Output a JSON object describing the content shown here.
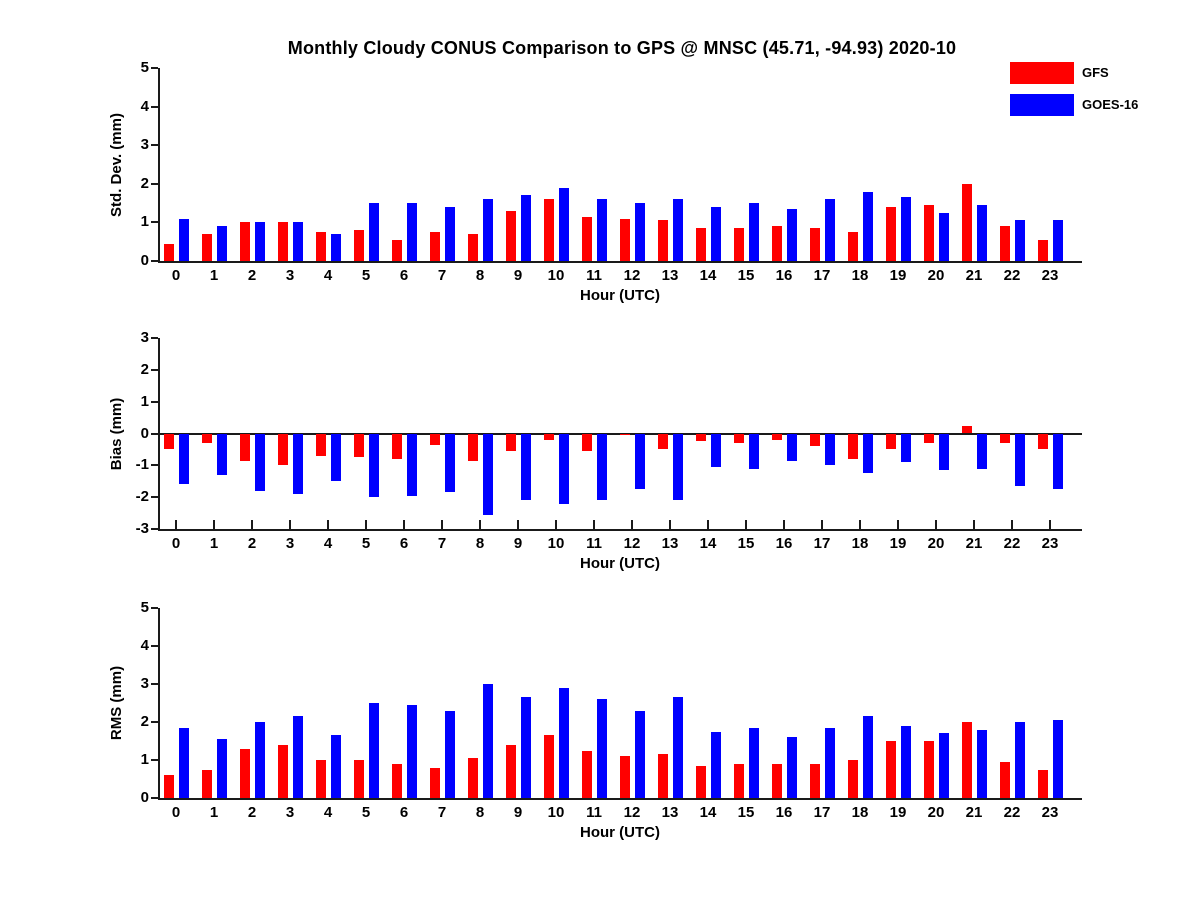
{
  "title": "Monthly Cloudy CONUS Comparison to GPS @ MNSC (45.71, -94.93) 2020-10",
  "legend": [
    {
      "label": "GFS",
      "color": "#ff0000"
    },
    {
      "label": "GOES-16",
      "color": "#0000ff"
    }
  ],
  "colors": {
    "gfs": "#ff0000",
    "goes16": "#0000ff",
    "axis": "#1a1a1a"
  },
  "chart_data": [
    {
      "type": "bar",
      "name": "std-dev",
      "ylabel": "Std. Dev. (mm)",
      "xlabel": "Hour (UTC)",
      "ylim": [
        0,
        5
      ],
      "yticks": [
        0,
        1,
        2,
        3,
        4,
        5
      ],
      "grid": false,
      "legend_position": "top-right-outside",
      "categories": [
        "0",
        "1",
        "2",
        "3",
        "4",
        "5",
        "6",
        "7",
        "8",
        "9",
        "10",
        "11",
        "12",
        "13",
        "14",
        "15",
        "16",
        "17",
        "18",
        "19",
        "20",
        "21",
        "22",
        "23"
      ],
      "series": [
        {
          "name": "GFS",
          "values": [
            0.45,
            0.7,
            1.0,
            1.0,
            0.75,
            0.8,
            0.55,
            0.75,
            0.7,
            1.3,
            1.6,
            1.15,
            1.1,
            1.05,
            0.85,
            0.85,
            0.9,
            0.85,
            0.75,
            1.4,
            1.45,
            2.0,
            0.9,
            0.55
          ]
        },
        {
          "name": "GOES-16",
          "values": [
            1.1,
            0.9,
            1.0,
            1.0,
            0.7,
            1.5,
            1.5,
            1.4,
            1.6,
            1.7,
            1.9,
            1.6,
            1.5,
            1.6,
            1.4,
            1.5,
            1.35,
            1.6,
            1.8,
            1.65,
            1.25,
            1.45,
            1.05,
            1.05
          ]
        }
      ]
    },
    {
      "type": "bar",
      "name": "bias",
      "ylabel": "Bias (mm)",
      "xlabel": "Hour (UTC)",
      "ylim": [
        -3,
        3
      ],
      "yticks": [
        3,
        2,
        1,
        0,
        -1,
        -2,
        -3
      ],
      "grid": false,
      "categories": [
        "0",
        "1",
        "2",
        "3",
        "4",
        "5",
        "6",
        "7",
        "8",
        "9",
        "10",
        "11",
        "12",
        "13",
        "14",
        "15",
        "16",
        "17",
        "18",
        "19",
        "20",
        "21",
        "22",
        "23"
      ],
      "series": [
        {
          "name": "GFS",
          "values": [
            -0.5,
            -0.3,
            -0.85,
            -1.0,
            -0.7,
            -0.75,
            -0.8,
            -0.35,
            -0.85,
            -0.55,
            -0.2,
            -0.55,
            -0.05,
            -0.5,
            -0.25,
            -0.3,
            -0.2,
            -0.4,
            -0.8,
            -0.5,
            -0.3,
            0.25,
            -0.3,
            -0.5
          ]
        },
        {
          "name": "GOES-16",
          "values": [
            -1.6,
            -1.3,
            -1.8,
            -1.9,
            -1.5,
            -2.0,
            -1.95,
            -1.85,
            -2.55,
            -2.1,
            -2.2,
            -2.1,
            -1.75,
            -2.1,
            -1.05,
            -1.1,
            -0.85,
            -1.0,
            -1.25,
            -0.9,
            -1.15,
            -1.1,
            -1.65,
            -1.75
          ]
        }
      ]
    },
    {
      "type": "bar",
      "name": "rms",
      "ylabel": "RMS (mm)",
      "xlabel": "Hour (UTC)",
      "ylim": [
        0,
        5
      ],
      "yticks": [
        0,
        1,
        2,
        3,
        4,
        5
      ],
      "grid": false,
      "categories": [
        "0",
        "1",
        "2",
        "3",
        "4",
        "5",
        "6",
        "7",
        "8",
        "9",
        "10",
        "11",
        "12",
        "13",
        "14",
        "15",
        "16",
        "17",
        "18",
        "19",
        "20",
        "21",
        "22",
        "23"
      ],
      "series": [
        {
          "name": "GFS",
          "values": [
            0.6,
            0.75,
            1.3,
            1.4,
            1.0,
            1.0,
            0.9,
            0.8,
            1.05,
            1.4,
            1.65,
            1.25,
            1.1,
            1.15,
            0.85,
            0.9,
            0.9,
            0.9,
            1.0,
            1.5,
            1.5,
            2.0,
            0.95,
            0.75
          ]
        },
        {
          "name": "GOES-16",
          "values": [
            1.85,
            1.55,
            2.0,
            2.15,
            1.65,
            2.5,
            2.45,
            2.3,
            3.0,
            2.65,
            2.9,
            2.6,
            2.3,
            2.65,
            1.75,
            1.85,
            1.6,
            1.85,
            2.15,
            1.9,
            1.7,
            1.8,
            2.0,
            2.05
          ]
        }
      ]
    }
  ]
}
